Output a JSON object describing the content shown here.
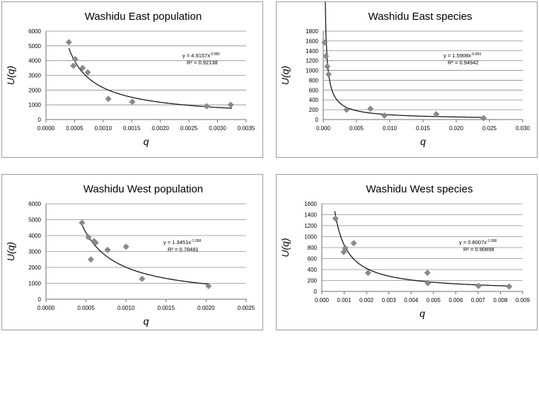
{
  "chart_data": [
    {
      "type": "scatter",
      "title": "Washidu East population",
      "xlabel": "q",
      "ylabel": "U(q)",
      "xlim": [
        0,
        0.0035
      ],
      "ylim": [
        0,
        6000
      ],
      "xticks": [
        0,
        0.0005,
        0.001,
        0.0015,
        0.002,
        0.0025,
        0.003,
        0.0035
      ],
      "xtick_labels": [
        "0.0000",
        "0.0005",
        "0.0010",
        "0.0015",
        "0.0020",
        "0.0025",
        "0.0030",
        "0.0035"
      ],
      "yticks": [
        0,
        1000,
        2000,
        3000,
        4000,
        5000,
        6000
      ],
      "ytick_labels": [
        "0",
        "1000",
        "2000",
        "3000",
        "4000",
        "5000",
        "6000"
      ],
      "points": {
        "x": [
          0.0004,
          0.00048,
          0.00051,
          0.00064,
          0.00073,
          0.00109,
          0.00151,
          0.00281,
          0.00323
        ],
        "y": [
          5250,
          3650,
          4100,
          3500,
          3200,
          1400,
          1200,
          900,
          1000
        ]
      },
      "fit": {
        "type": "power",
        "a": 4.9157,
        "b": -0.881,
        "x_range": [
          0.0004,
          0.00325
        ],
        "equation_prefix": "y = 4.9157x",
        "equation_exponent": "-0.881",
        "r2_text": "R² = 0.92138"
      }
    },
    {
      "type": "scatter",
      "title": "Washidu East species",
      "xlabel": "q",
      "ylabel": "U(q)",
      "xlim": [
        0,
        0.03
      ],
      "ylim": [
        0,
        1800
      ],
      "xticks": [
        0,
        0.005,
        0.01,
        0.015,
        0.02,
        0.025,
        0.03
      ],
      "xtick_labels": [
        "0.000",
        "0.005",
        "0.010",
        "0.015",
        "0.020",
        "0.025",
        "0.030"
      ],
      "yticks": [
        0,
        200,
        400,
        600,
        800,
        1000,
        1200,
        1400,
        1600,
        1800
      ],
      "ytick_labels": [
        "0",
        "200",
        "400",
        "600",
        "800",
        "1000",
        "1200",
        "1400",
        "1600",
        "1800"
      ],
      "points": {
        "x": [
          0.0002,
          0.0004,
          0.0006,
          0.0008,
          0.0035,
          0.0071,
          0.0092,
          0.017,
          0.0241
        ],
        "y": [
          1570,
          1290,
          1080,
          920,
          200,
          220,
          80,
          110,
          30
        ]
      },
      "fit": {
        "type": "power",
        "a": 1.5908,
        "b": -0.893,
        "x_range": [
          0.0002,
          0.0241
        ],
        "equation_prefix": "y = 1.5908x",
        "equation_exponent": "-0.893",
        "r2_text": "R² = 0.94942"
      }
    },
    {
      "type": "scatter",
      "title": "Washidu West population",
      "xlabel": "q",
      "ylabel": "U(q)",
      "xlim": [
        0,
        0.0025
      ],
      "ylim": [
        0,
        6000
      ],
      "xticks": [
        0,
        0.0005,
        0.001,
        0.0015,
        0.002,
        0.0025
      ],
      "xtick_labels": [
        "0.0000",
        "0.0005",
        "0.0010",
        "0.0015",
        "0.0020",
        "0.0025"
      ],
      "yticks": [
        0,
        1000,
        2000,
        3000,
        4000,
        5000,
        6000
      ],
      "ytick_labels": [
        "0",
        "1000",
        "2000",
        "3000",
        "4000",
        "5000",
        "6000"
      ],
      "points": {
        "x": [
          0.00045,
          0.00053,
          0.00056,
          0.0006,
          0.00062,
          0.00077,
          0.001,
          0.0012,
          0.00203
        ],
        "y": [
          4800,
          3900,
          2500,
          3650,
          3550,
          3100,
          3300,
          1280,
          830
        ]
      },
      "fit": {
        "type": "power",
        "a": 1.3451,
        "b": -1.058,
        "x_range": [
          0.00045,
          0.00203
        ],
        "equation_prefix": "y = 1.3451x",
        "equation_exponent": "-1.058",
        "r2_text": "R² = 0.78481"
      }
    },
    {
      "type": "scatter",
      "title": "Washidu West species",
      "xlabel": "q",
      "ylabel": "U(q)",
      "xlim": [
        0,
        0.009
      ],
      "ylim": [
        0,
        1600
      ],
      "xticks": [
        0,
        0.001,
        0.002,
        0.003,
        0.004,
        0.005,
        0.006,
        0.007,
        0.008,
        0.009
      ],
      "xtick_labels": [
        "0.000",
        "0.001",
        "0.002",
        "0.003",
        "0.004",
        "0.005",
        "0.006",
        "0.007",
        "0.008",
        "0.009"
      ],
      "yticks": [
        0,
        200,
        400,
        600,
        800,
        1000,
        1200,
        1400,
        1600
      ],
      "ytick_labels": [
        "0",
        "200",
        "400",
        "600",
        "800",
        "1000",
        "1200",
        "1400",
        "1600"
      ],
      "points": {
        "x": [
          0.00061,
          0.00098,
          0.00105,
          0.00143,
          0.00207,
          0.00473,
          0.00475,
          0.00702,
          0.00839
        ],
        "y": [
          1330,
          720,
          790,
          880,
          340,
          340,
          150,
          100,
          90
        ]
      },
      "fit": {
        "type": "power",
        "a": 0.8007,
        "b": -1.008,
        "x_range": [
          0.00058,
          0.0084
        ],
        "equation_prefix": "y = 0.8007x",
        "equation_exponent": "-1.008",
        "r2_text": "R² = 0.90898"
      }
    }
  ]
}
